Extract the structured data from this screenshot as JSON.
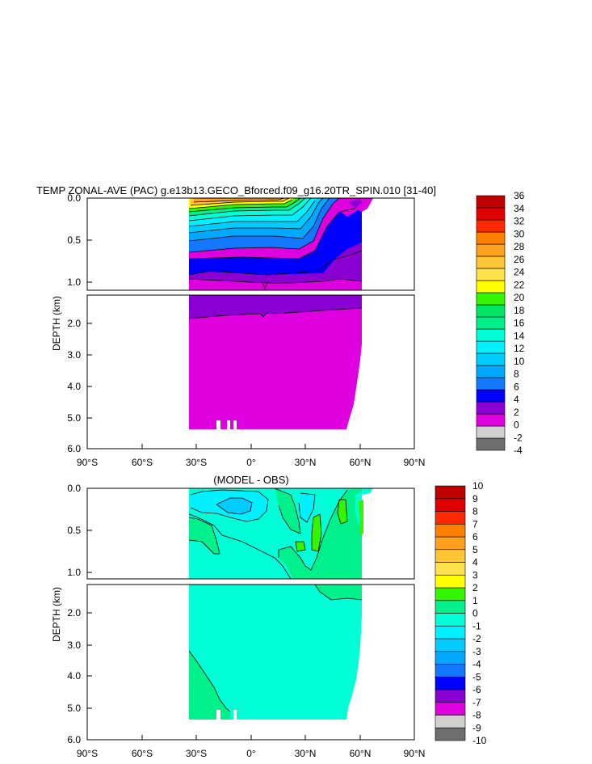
{
  "title": "TEMP ZONAL-AVE (PAC) g.e13b13.GECO_Bforced.f09_g16.20TR_SPIN.010 [31-40]",
  "colors": {
    "temp_scale": [
      "#6e6e6e",
      "#d0d0d0",
      "#de00de",
      "#8a00d2",
      "#0000ff",
      "#1478ff",
      "#00a8ff",
      "#00ccff",
      "#00f0ff",
      "#00ffd6",
      "#00f08c",
      "#00e664",
      "#33f500",
      "#ffff00",
      "#ffe24b",
      "#ffc536",
      "#ffa01e",
      "#ff8000",
      "#ff2800",
      "#e10000",
      "#be0000"
    ],
    "diff_scale": [
      "#6e6e6e",
      "#d0d0d0",
      "#de00de",
      "#8a00d2",
      "#0000ff",
      "#1478ff",
      "#00a8ff",
      "#00ccff",
      "#00f0ff",
      "#00ffd6",
      "#00f08c",
      "#33f500",
      "#ffff00",
      "#ffe24b",
      "#ffc536",
      "#ffa01e",
      "#ff8000",
      "#ff2800",
      "#e10000",
      "#be0000"
    ]
  },
  "chart_data": [
    {
      "type": "heatmap",
      "title": "TEMP ZONAL-AVE (PAC) g.e13b13.GECO_Bforced.f09_g16.20TR_SPIN.010 [31-40]",
      "ylabel": "DEPTH (km)",
      "xlabel": "",
      "x_range": [
        -90,
        90
      ],
      "x_ticks": [
        "90°S",
        "60°S",
        "30°S",
        "0°",
        "30°N",
        "60°N",
        "90°N"
      ],
      "upper_y_ticks": [
        "0.0",
        "0.5",
        "1.0"
      ],
      "lower_y_ticks": [
        "2.0",
        "3.0",
        "4.0",
        "5.0",
        "6.0"
      ],
      "upper_depth_range": [
        0,
        1.15
      ],
      "lower_depth_range": [
        1.15,
        6.0
      ],
      "colorbar_levels": [
        "36",
        "34",
        "32",
        "30",
        "28",
        "26",
        "24",
        "22",
        "20",
        "18",
        "16",
        "14",
        "12",
        "10",
        "8",
        "6",
        "4",
        "2",
        "0",
        "-2",
        "-4"
      ],
      "data_extent_lat": [
        -34,
        61
      ],
      "notes": "Warm surface (up to ~28) near equator, cooling to 2-4 at depth"
    },
    {
      "type": "heatmap",
      "title": "(MODEL - OBS)",
      "ylabel": "DEPTH (km)",
      "xlabel": "",
      "x_range": [
        -90,
        90
      ],
      "x_ticks": [
        "90°S",
        "60°S",
        "30°S",
        "0°",
        "30°N",
        "60°N",
        "90°N"
      ],
      "upper_y_ticks": [
        "0.0",
        "0.5",
        "1.0"
      ],
      "lower_y_ticks": [
        "2.0",
        "3.0",
        "4.0",
        "5.0",
        "6.0"
      ],
      "upper_depth_range": [
        0,
        1.15
      ],
      "lower_depth_range": [
        1.15,
        6.0
      ],
      "colorbar_levels": [
        "10",
        "9",
        "8",
        "7",
        "6",
        "5",
        "4",
        "3",
        "2",
        "1",
        "0",
        "-1",
        "-2",
        "-3",
        "-4",
        "-5",
        "-6",
        "-7",
        "-8",
        "-9",
        "-10"
      ],
      "data_extent_lat": [
        -34,
        61
      ]
    }
  ]
}
